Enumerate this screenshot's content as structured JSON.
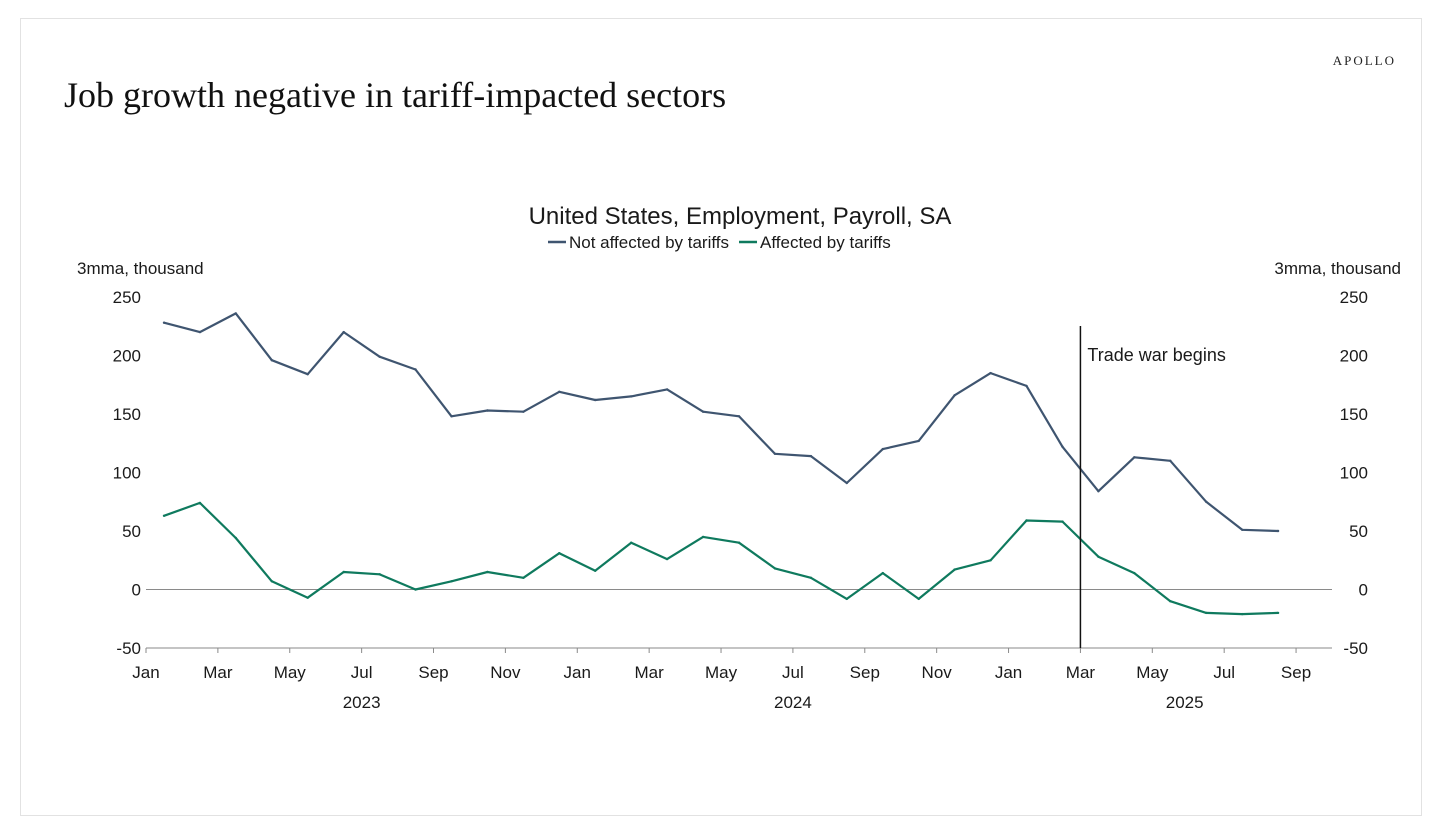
{
  "brand": "APOLLO",
  "page_title": "Job growth negative in tariff-impacted sectors",
  "colors": {
    "not_affected": "#3f5570",
    "affected": "#0f7a5e",
    "axis": "#8a8a8a",
    "event_line": "#111111"
  },
  "chart_data": {
    "type": "line",
    "title": "United States, Employment, Payroll, SA",
    "ylabel_left": "3mma, thousand",
    "ylabel_right": "3mma, thousand",
    "ylim": [
      -50,
      250
    ],
    "yticks": [
      250,
      200,
      150,
      100,
      50,
      0,
      -50
    ],
    "xlim": [
      0,
      33
    ],
    "xticks": [
      {
        "label": "Jan",
        "x": 0
      },
      {
        "label": "Mar",
        "x": 2
      },
      {
        "label": "May",
        "x": 4
      },
      {
        "label": "Jul",
        "x": 6
      },
      {
        "label": "Sep",
        "x": 8
      },
      {
        "label": "Nov",
        "x": 10
      },
      {
        "label": "Jan",
        "x": 12
      },
      {
        "label": "Mar",
        "x": 14
      },
      {
        "label": "May",
        "x": 16
      },
      {
        "label": "Jul",
        "x": 18
      },
      {
        "label": "Sep",
        "x": 20
      },
      {
        "label": "Nov",
        "x": 22
      },
      {
        "label": "Jan",
        "x": 24
      },
      {
        "label": "Mar",
        "x": 26
      },
      {
        "label": "May",
        "x": 28
      },
      {
        "label": "Jul",
        "x": 30
      },
      {
        "label": "Sep",
        "x": 32
      }
    ],
    "year_labels": [
      {
        "label": "2023",
        "x": 6
      },
      {
        "label": "2024",
        "x": 18
      },
      {
        "label": "2025",
        "x": 28.9
      }
    ],
    "x": [
      0.5,
      1.5,
      2.5,
      3.5,
      4.5,
      5.5,
      6.5,
      7.5,
      8.5,
      9.5,
      10.5,
      11.5,
      12.5,
      13.5,
      14.5,
      15.5,
      16.5,
      17.5,
      18.5,
      19.5,
      20.5,
      21.5,
      22.5,
      23.5,
      24.5,
      25.5,
      26.5,
      27.5,
      28.5,
      29.5,
      30.5,
      31.5
    ],
    "series": [
      {
        "name": "Not affected by tariffs",
        "color": "#3f5570",
        "values": [
          228,
          220,
          236,
          196,
          184,
          220,
          199,
          188,
          148,
          153,
          152,
          169,
          162,
          165,
          171,
          152,
          148,
          116,
          114,
          91,
          120,
          127,
          166,
          185,
          174,
          122,
          84,
          113,
          110,
          75,
          51,
          50
        ]
      },
      {
        "name": "Affected by tariffs",
        "color": "#0f7a5e",
        "values": [
          63,
          74,
          44,
          7,
          -7,
          15,
          13,
          0,
          7,
          15,
          10,
          31,
          16,
          40,
          26,
          45,
          40,
          18,
          10,
          -8,
          14,
          -8,
          17,
          25,
          59,
          58,
          28,
          14,
          -10,
          -20,
          -21,
          -20
        ]
      }
    ],
    "annotation": {
      "label": "Trade war begins",
      "x": 26
    },
    "legend_position": "top-center"
  }
}
